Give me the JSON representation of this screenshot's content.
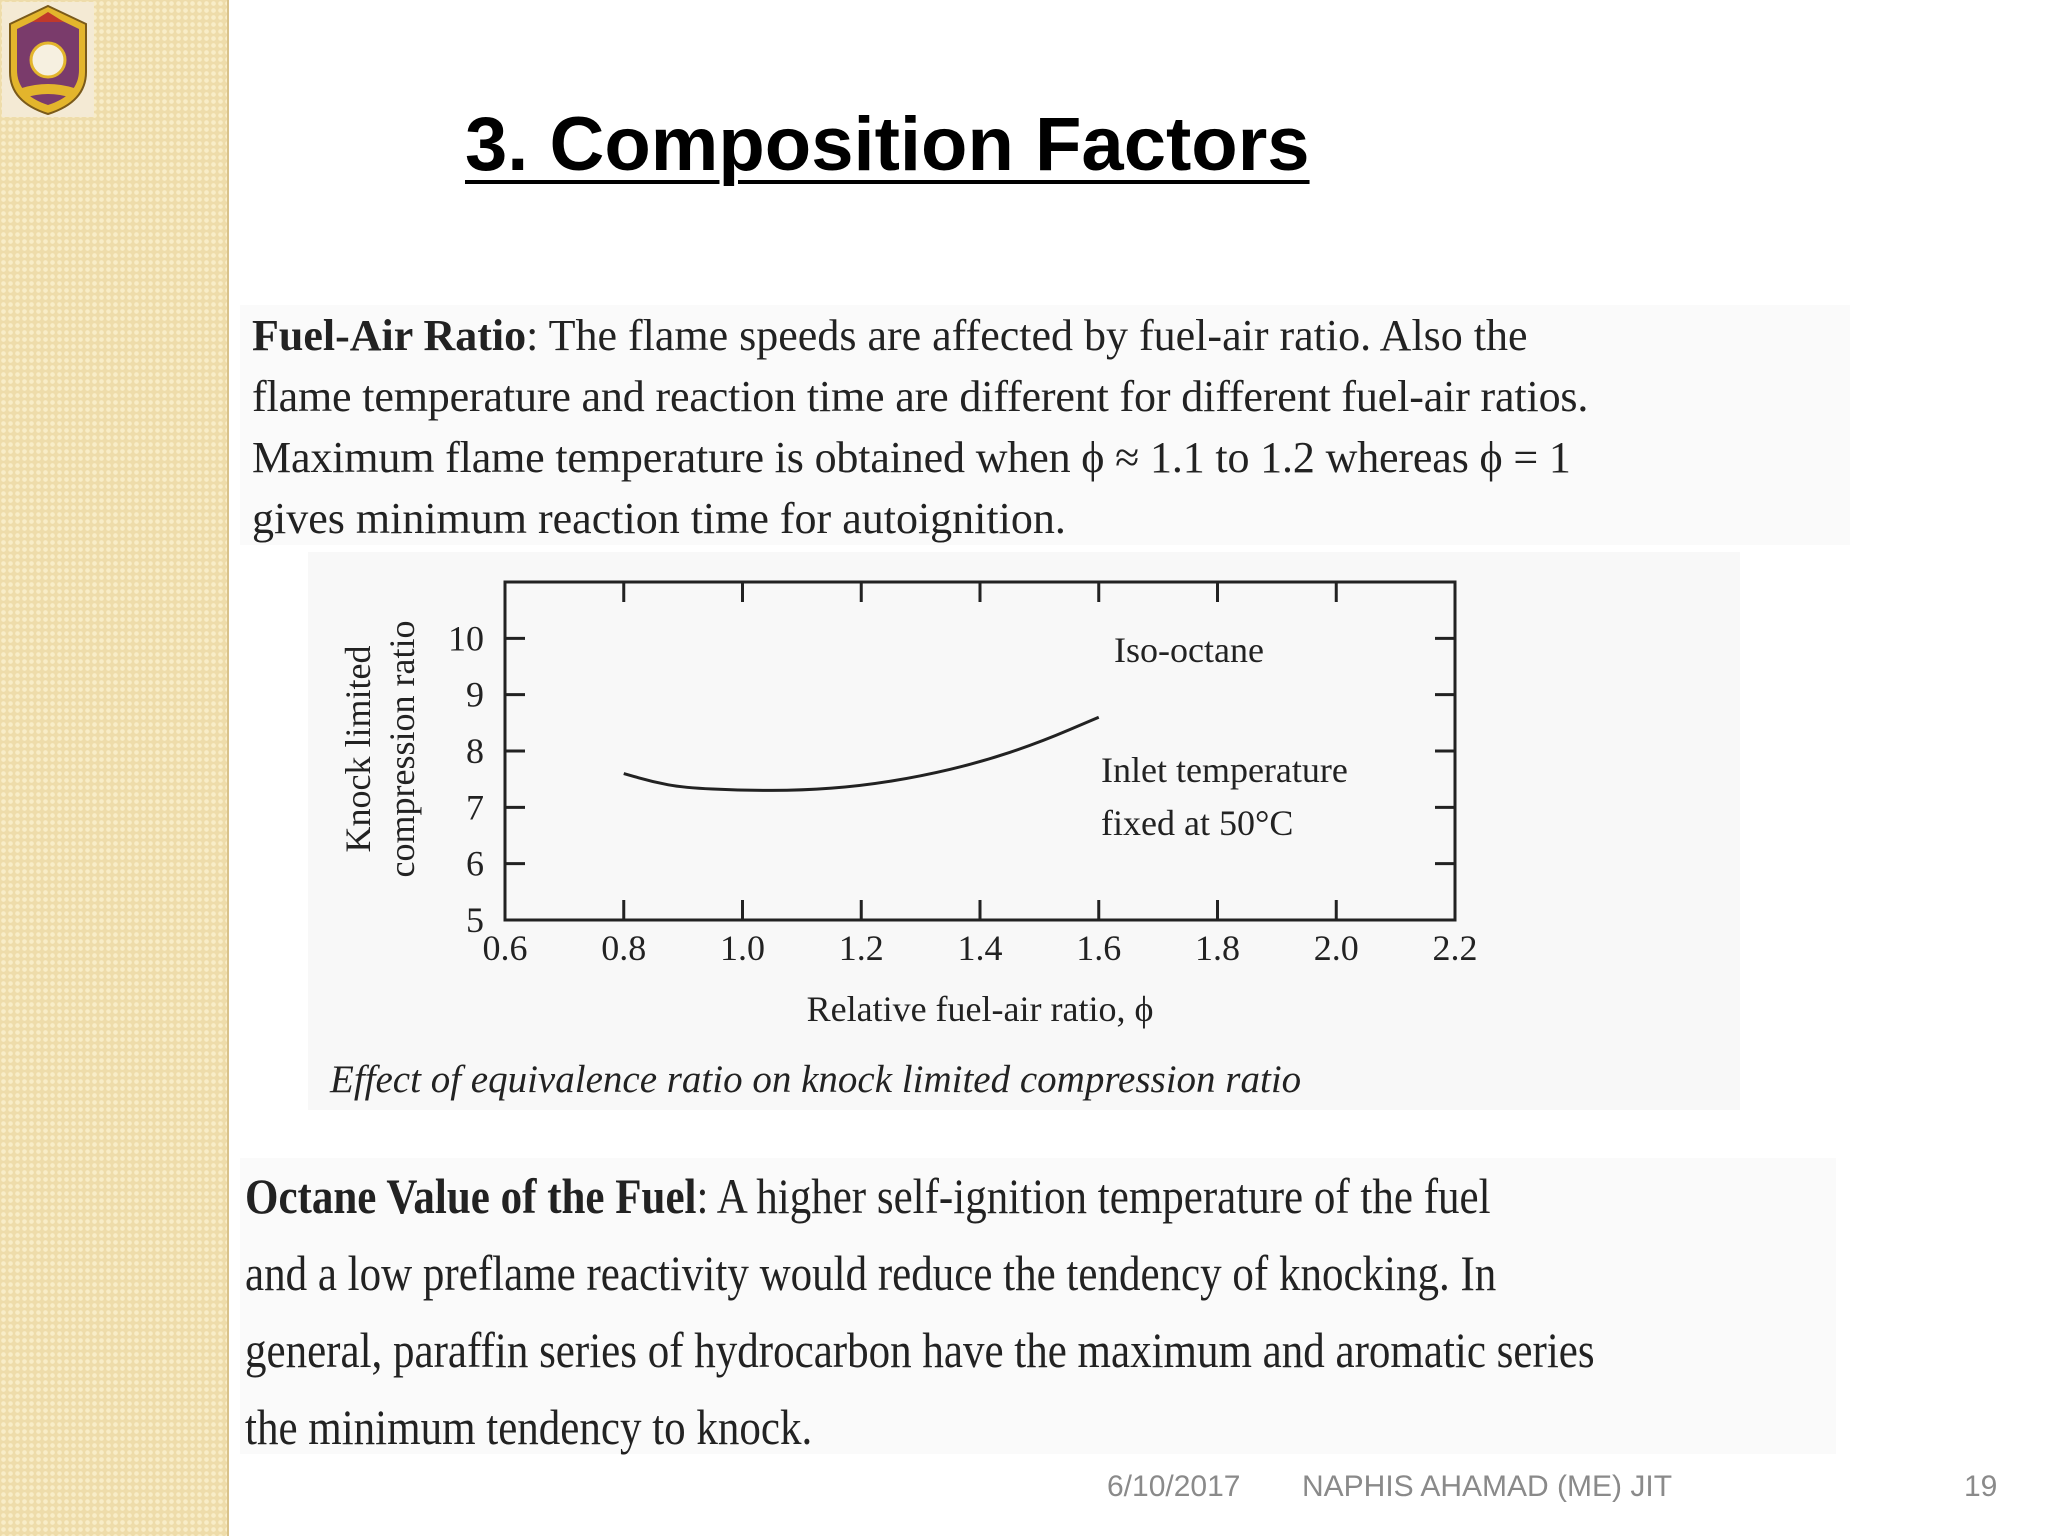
{
  "slide": {
    "title": "3. Composition Factors",
    "para1": {
      "term": "Fuel-Air Ratio",
      "line1": ": The flame speeds are affected by fuel-air ratio.  Also the",
      "line2": "flame temperature and reaction time are different for different fuel-air ratios.",
      "line3": "Maximum flame temperature is obtained when ϕ ≈ 1.1 to 1.2 whereas ϕ = 1",
      "line4": "gives minimum reaction time for autoignition."
    },
    "para2": {
      "term": "Octane Value of the Fuel",
      "line1": ": A higher self-ignition temperature of the fuel",
      "line2": "and a low preflame reactivity would reduce the tendency of knocking.  In",
      "line3": "general, paraffin series of hydrocarbon have the maximum and aromatic series",
      "line4": "the minimum tendency to knock."
    }
  },
  "chart_data": {
    "type": "line",
    "caption": "Effect of equivalence ratio on knock limited compression ratio",
    "xlabel": "Relative fuel-air ratio, ϕ",
    "ylabel_line1": "Knock limited",
    "ylabel_line2": "compression ratio",
    "xlim": [
      0.6,
      2.2
    ],
    "ylim": [
      5,
      11
    ],
    "x_ticks": [
      "0.6",
      "0.8",
      "1.0",
      "1.2",
      "1.4",
      "1.6",
      "1.8",
      "2.0",
      "2.2"
    ],
    "y_ticks": [
      "5",
      "6",
      "7",
      "8",
      "9",
      "10"
    ],
    "series": [
      {
        "x": [
          0.8,
          0.85,
          0.9,
          1.0,
          1.1,
          1.2,
          1.3,
          1.4,
          1.5,
          1.6
        ],
        "y": [
          7.6,
          7.45,
          7.35,
          7.3,
          7.3,
          7.38,
          7.55,
          7.8,
          8.15,
          8.6
        ]
      }
    ],
    "annotations": {
      "fuel": "Iso-octane",
      "condition_line1": "Inlet temperature",
      "condition_line2": "fixed at 50°C"
    },
    "grid": false
  },
  "footer": {
    "date": "6/10/2017",
    "author": "NAPHIS AHAMAD (ME) JIT",
    "page": "19"
  },
  "colors": {
    "sidebar": "#eedcaa",
    "title": "#000000",
    "footer_text": "#8a8a8a",
    "logo_shield": "#7a3b6b",
    "logo_gold": "#e3b52c"
  }
}
